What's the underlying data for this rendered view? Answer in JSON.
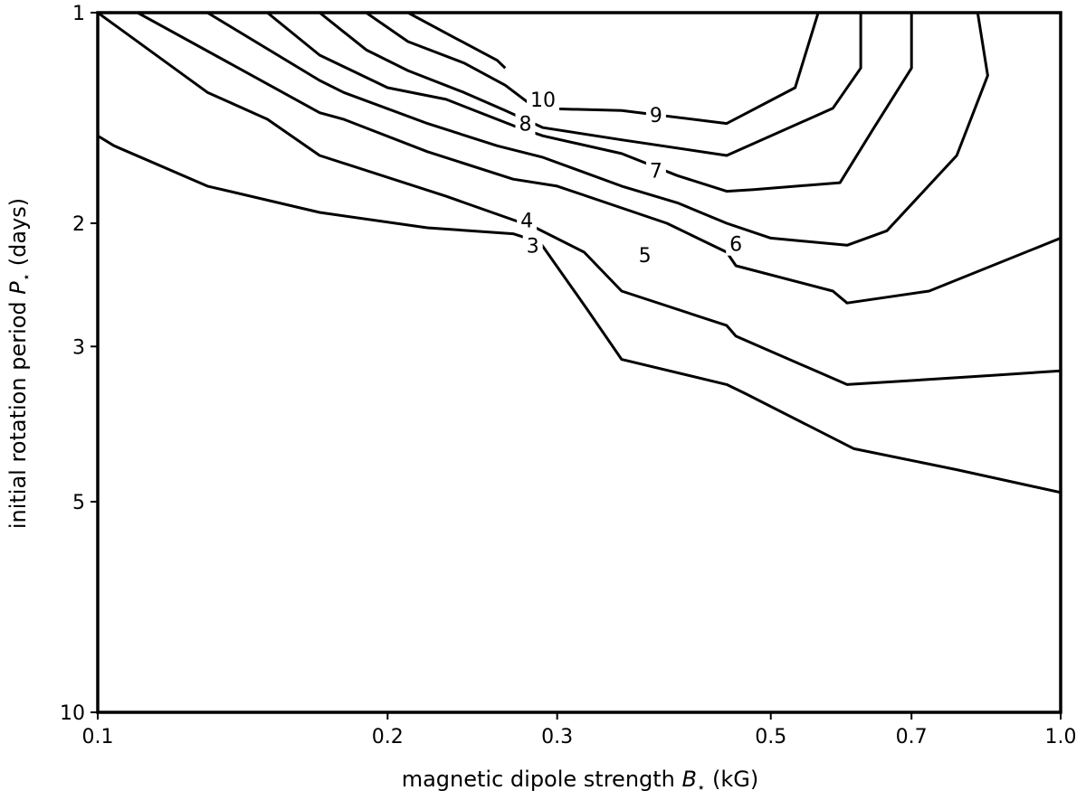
{
  "chart_data": {
    "type": "contour",
    "xlabel": "magnetic dipole strength",
    "xlabel_symbol": "B",
    "xlabel_unit": "(kG)",
    "ylabel": "initial rotation period",
    "ylabel_symbol": "P",
    "ylabel_unit": "(days)",
    "x_scale": "log",
    "y_scale": "log",
    "y_inverted": true,
    "xlim": [
      0.1,
      1.0
    ],
    "ylim": [
      1,
      10
    ],
    "grid": false,
    "x_ticks": [
      {
        "value": 0.1,
        "label": "0.1"
      },
      {
        "value": 0.2,
        "label": "0.2"
      },
      {
        "value": 0.3,
        "label": "0.3"
      },
      {
        "value": 0.5,
        "label": "0.5"
      },
      {
        "value": 0.7,
        "label": "0.7"
      },
      {
        "value": 1.0,
        "label": "1.0"
      }
    ],
    "y_ticks": [
      {
        "value": 1,
        "label": "1"
      },
      {
        "value": 2,
        "label": "2"
      },
      {
        "value": 3,
        "label": "3"
      },
      {
        "value": 5,
        "label": "5"
      },
      {
        "value": 10,
        "label": "10"
      }
    ],
    "contours": [
      {
        "level": 3,
        "label": "3",
        "label_at": [
          0.283,
          2.15
        ],
        "points": [
          [
            0.1,
            1.5
          ],
          [
            0.104,
            1.55
          ],
          [
            0.13,
            1.77
          ],
          [
            0.17,
            1.93
          ],
          [
            0.22,
            2.03
          ],
          [
            0.27,
            2.07
          ],
          [
            0.288,
            2.13
          ],
          [
            0.322,
            2.65
          ],
          [
            0.35,
            3.13
          ],
          [
            0.45,
            3.4
          ],
          [
            0.47,
            3.5
          ],
          [
            0.61,
            4.2
          ],
          [
            0.78,
            4.5
          ],
          [
            1.0,
            4.85
          ]
        ]
      },
      {
        "level": 4,
        "label": "4",
        "label_at": [
          0.279,
          1.98
        ],
        "points": [
          [
            0.1,
            1.0
          ],
          [
            0.13,
            1.3
          ],
          [
            0.15,
            1.42
          ],
          [
            0.17,
            1.6
          ],
          [
            0.23,
            1.83
          ],
          [
            0.285,
            2.03
          ],
          [
            0.32,
            2.2
          ],
          [
            0.35,
            2.5
          ],
          [
            0.45,
            2.8
          ],
          [
            0.46,
            2.9
          ],
          [
            0.6,
            3.4
          ],
          [
            0.85,
            3.3
          ],
          [
            1.0,
            3.25
          ]
        ]
      },
      {
        "level": 5,
        "label": "5",
        "label_at": [
          0.37,
          2.22
        ],
        "points": [
          [
            0.11,
            1.0
          ],
          [
            0.14,
            1.2
          ],
          [
            0.17,
            1.39
          ],
          [
            0.18,
            1.42
          ],
          [
            0.22,
            1.58
          ],
          [
            0.27,
            1.73
          ],
          [
            0.3,
            1.77
          ],
          [
            0.39,
            2.0
          ],
          [
            0.45,
            2.2
          ],
          [
            0.46,
            2.3
          ],
          [
            0.58,
            2.5
          ],
          [
            0.6,
            2.6
          ],
          [
            0.73,
            2.5
          ],
          [
            1.0,
            2.1
          ]
        ]
      },
      {
        "level": 6,
        "label": "6",
        "label_at": [
          0.46,
          2.14
        ],
        "points": [
          [
            0.13,
            1.0
          ],
          [
            0.17,
            1.25
          ],
          [
            0.18,
            1.3
          ],
          [
            0.22,
            1.44
          ],
          [
            0.26,
            1.55
          ],
          [
            0.29,
            1.61
          ],
          [
            0.35,
            1.77
          ],
          [
            0.4,
            1.87
          ],
          [
            0.45,
            2.0
          ],
          [
            0.5,
            2.1
          ],
          [
            0.6,
            2.15
          ],
          [
            0.66,
            2.05
          ],
          [
            0.78,
            1.6
          ],
          [
            0.84,
            1.23
          ],
          [
            0.82,
            1.0
          ]
        ]
      },
      {
        "level": 7,
        "label": "7",
        "label_at": [
          0.38,
          1.68
        ],
        "points": [
          [
            0.15,
            1.0
          ],
          [
            0.17,
            1.15
          ],
          [
            0.2,
            1.28
          ],
          [
            0.23,
            1.33
          ],
          [
            0.27,
            1.45
          ],
          [
            0.29,
            1.5
          ],
          [
            0.35,
            1.59
          ],
          [
            0.4,
            1.71
          ],
          [
            0.45,
            1.8
          ],
          [
            0.48,
            1.79
          ],
          [
            0.59,
            1.75
          ],
          [
            0.64,
            1.46
          ],
          [
            0.7,
            1.2
          ],
          [
            0.7,
            1.0
          ]
        ]
      },
      {
        "level": 8,
        "label": "8",
        "label_at": [
          0.278,
          1.44
        ],
        "points": [
          [
            0.17,
            1.0
          ],
          [
            0.19,
            1.13
          ],
          [
            0.21,
            1.21
          ],
          [
            0.24,
            1.3
          ],
          [
            0.265,
            1.38
          ],
          [
            0.29,
            1.46
          ],
          [
            0.35,
            1.52
          ],
          [
            0.45,
            1.6
          ],
          [
            0.58,
            1.37
          ],
          [
            0.62,
            1.2
          ],
          [
            0.62,
            1.0
          ]
        ]
      },
      {
        "level": 9,
        "label": "9",
        "label_at": [
          0.38,
          1.4
        ],
        "points": [
          [
            0.19,
            1.0
          ],
          [
            0.21,
            1.1
          ],
          [
            0.24,
            1.18
          ],
          [
            0.265,
            1.27
          ],
          [
            0.285,
            1.37
          ],
          [
            0.35,
            1.38
          ],
          [
            0.45,
            1.44
          ],
          [
            0.53,
            1.28
          ],
          [
            0.56,
            1.0
          ]
        ]
      },
      {
        "level": 10,
        "label": "10",
        "label_at": [
          0.29,
          1.33
        ],
        "points": [
          [
            0.21,
            1.0
          ],
          [
            0.23,
            1.07
          ],
          [
            0.26,
            1.17
          ],
          [
            0.265,
            1.2
          ]
        ]
      }
    ]
  }
}
